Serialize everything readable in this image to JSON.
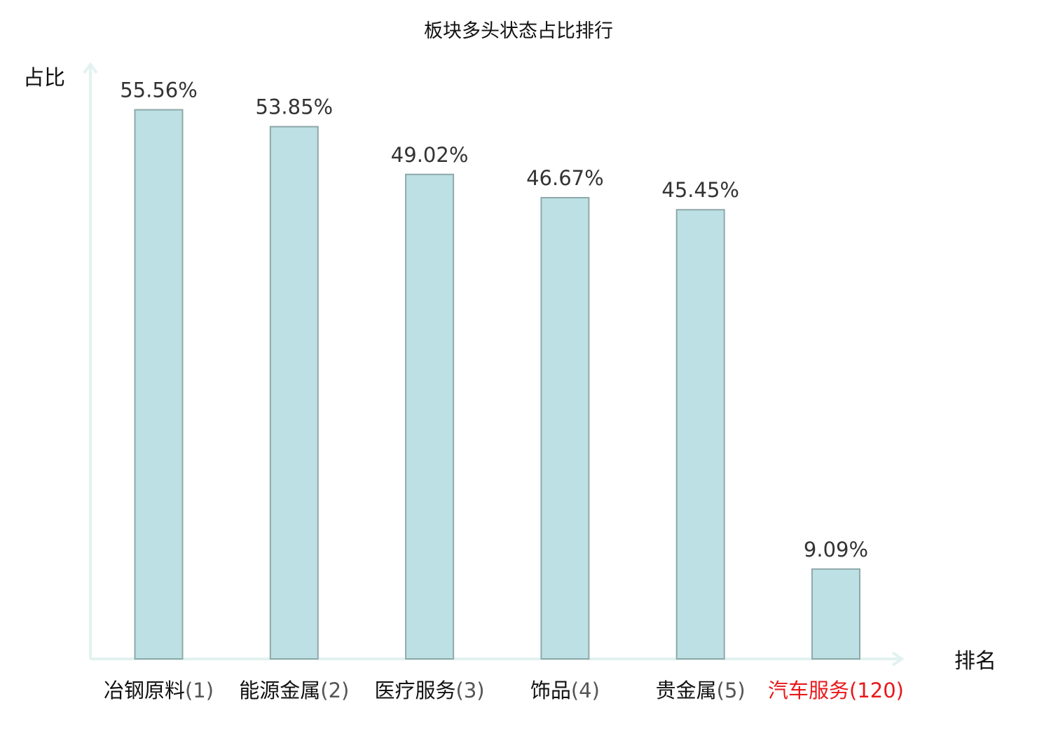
{
  "chart_data": {
    "type": "bar",
    "title": "板块多头状态占比排行",
    "ylabel": "占比",
    "xlabel": "排名",
    "categories": [
      {
        "name": "冶钢原料",
        "rank": "(1)",
        "highlight": false
      },
      {
        "name": "能源金属",
        "rank": "(2)",
        "highlight": false
      },
      {
        "name": "医疗服务",
        "rank": "(3)",
        "highlight": false
      },
      {
        "name": "饰品",
        "rank": "(4)",
        "highlight": false
      },
      {
        "name": "贵金属",
        "rank": "(5)",
        "highlight": false
      },
      {
        "name": "汽车服务",
        "rank": "(120)",
        "highlight": true
      }
    ],
    "values": [
      55.56,
      53.85,
      49.02,
      46.67,
      45.45,
      9.09
    ],
    "value_labels": [
      "55.56%",
      "53.85%",
      "49.02%",
      "46.67%",
      "45.45%",
      "9.09%"
    ],
    "ylim": [
      0,
      60
    ],
    "grid": false,
    "legend": "none",
    "colors": {
      "bar_fill": "#bce0e3",
      "bar_stroke": "#8fa8aa",
      "axis": "#e2f2f0",
      "category_text": "#111111",
      "rank_text": "#555555",
      "highlight_text": "#e8191b"
    }
  }
}
